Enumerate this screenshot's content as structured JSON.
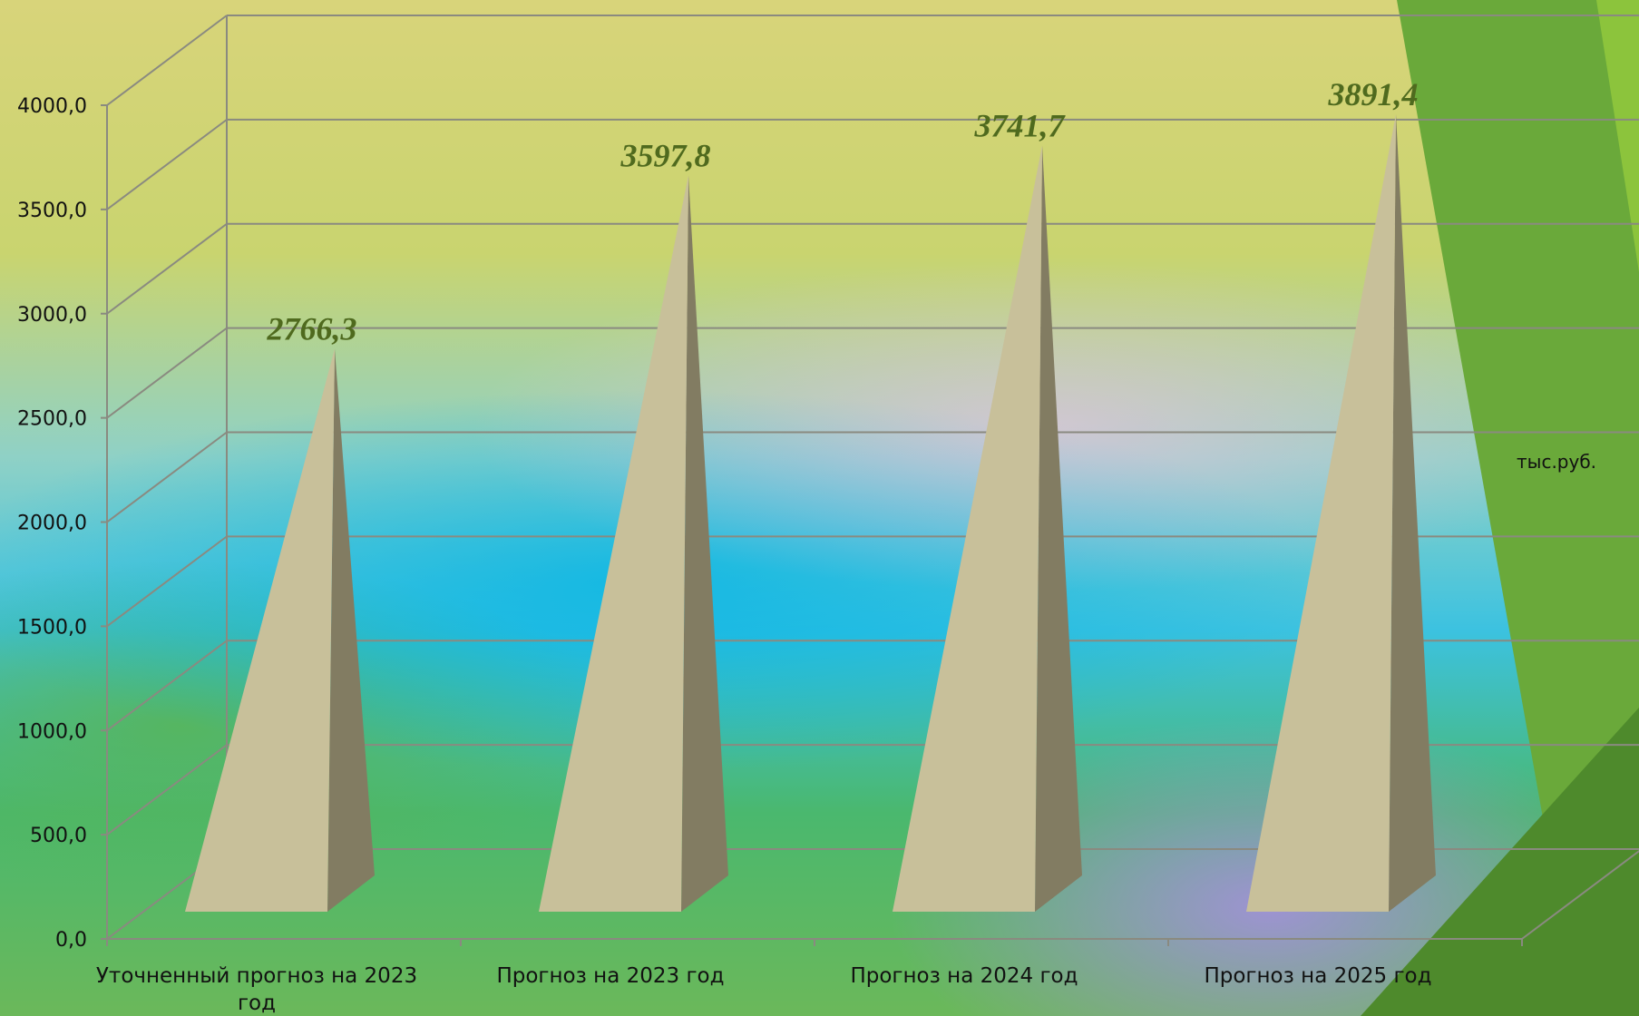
{
  "chart_data": {
    "type": "bar",
    "bar_shape": "pyramid-3d",
    "categories": [
      "Уточненный прогноз на 2023 год",
      "Прогноз на 2023 год",
      "Прогноз на 2024 год",
      "Прогноз на 2025 год"
    ],
    "category_lines": [
      [
        "Уточненный прогноз на 2023",
        "год"
      ],
      [
        "Прогноз на 2023 год"
      ],
      [
        "Прогноз на 2024 год"
      ],
      [
        "Прогноз на 2025 год"
      ]
    ],
    "values": [
      2766.3,
      3597.8,
      3741.7,
      3891.4
    ],
    "value_labels": [
      "2766,3",
      "3597,8",
      "3741,7",
      "3891,4"
    ],
    "yticks": [
      "0,0",
      "500,0",
      "1000,0",
      "1500,0",
      "2000,0",
      "2500,0",
      "3000,0",
      "3500,0",
      "4000,0"
    ],
    "ylim": [
      0,
      4000
    ],
    "unit_label": "тыс.руб.",
    "grid": true,
    "colors": {
      "front": "#c8c09a",
      "side": "#827c62",
      "grid": "#8a8a80",
      "value_text": "#4f6a1e"
    }
  },
  "decor": {
    "stripe_colors": [
      "#6aa93a",
      "#4e8a2c",
      "#8cc43c"
    ]
  }
}
